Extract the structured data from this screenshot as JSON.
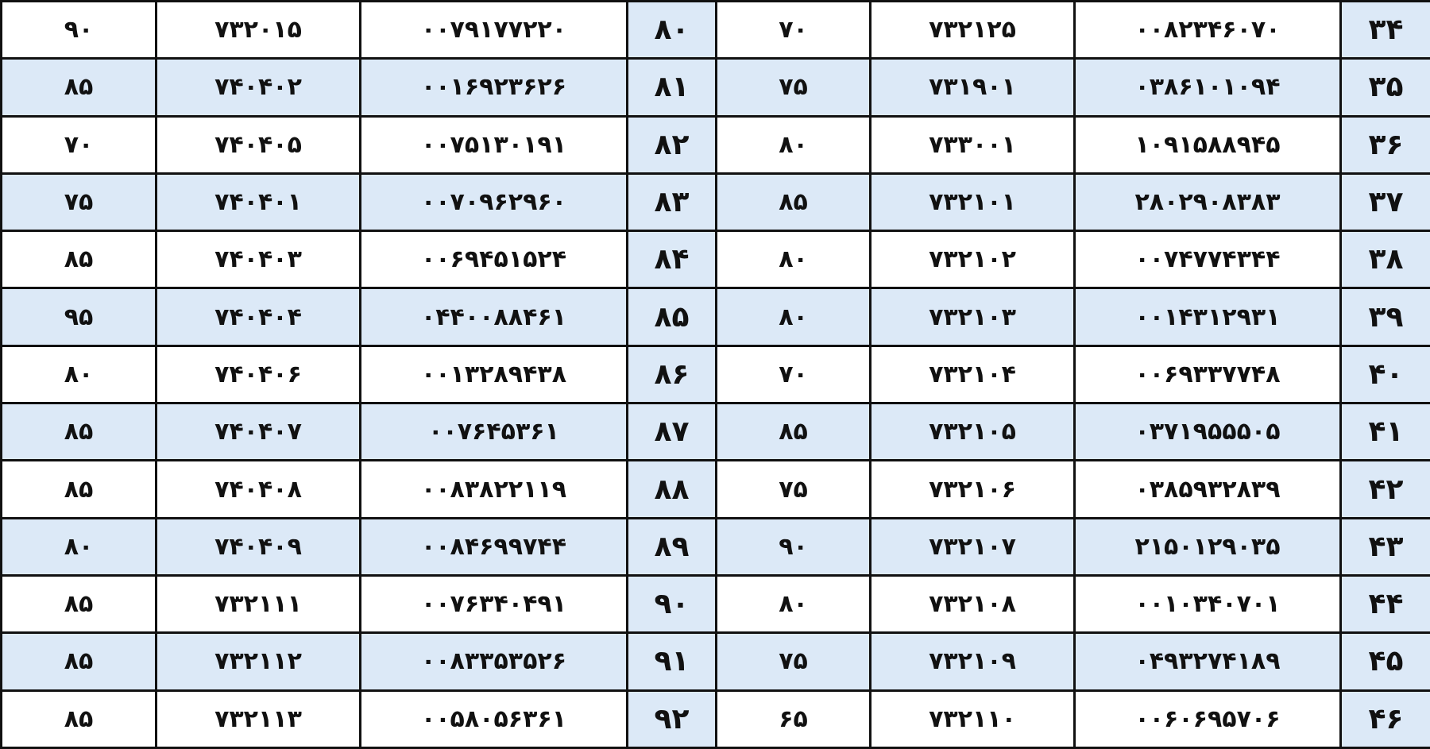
{
  "table": {
    "rows": [
      [
        "۹۰",
        "۷۳۲۰۱۵",
        "۰۰۷۹۱۷۷۲۲۰",
        "۸۰",
        "۷۰",
        "۷۳۲۱۲۵",
        "۰۰۸۲۳۴۶۰۷۰",
        "۳۴"
      ],
      [
        "۸۵",
        "۷۴۰۴۰۲",
        "۰۰۱۶۹۲۳۶۲۶",
        "۸۱",
        "۷۵",
        "۷۳۱۹۰۱",
        "۰۳۸۶۱۰۱۰۹۴",
        "۳۵"
      ],
      [
        "۷۰",
        "۷۴۰۴۰۵",
        "۰۰۷۵۱۳۰۱۹۱",
        "۸۲",
        "۸۰",
        "۷۳۳۰۰۱",
        "۱۰۹۱۵۸۸۹۴۵",
        "۳۶"
      ],
      [
        "۷۵",
        "۷۴۰۴۰۱",
        "۰۰۷۰۹۶۲۹۶۰",
        "۸۳",
        "۸۵",
        "۷۳۲۱۰۱",
        "۲۸۰۲۹۰۸۳۸۳",
        "۳۷"
      ],
      [
        "۸۵",
        "۷۴۰۴۰۳",
        "۰۰۶۹۴۵۱۵۲۴",
        "۸۴",
        "۸۰",
        "۷۳۲۱۰۲",
        "۰۰۷۴۷۷۴۳۴۴",
        "۳۸"
      ],
      [
        "۹۵",
        "۷۴۰۴۰۴",
        "۰۴۴۰۰۸۸۴۶۱",
        "۸۵",
        "۸۰",
        "۷۳۲۱۰۳",
        "۰۰۱۴۳۱۲۹۳۱",
        "۳۹"
      ],
      [
        "۸۰",
        "۷۴۰۴۰۶",
        "۰۰۱۳۲۸۹۴۳۸",
        "۸۶",
        "۷۰",
        "۷۳۲۱۰۴",
        "۰۰۶۹۳۳۷۷۴۸",
        "۴۰"
      ],
      [
        "۸۵",
        "۷۴۰۴۰۷",
        "۰۰۷۶۴۵۳۶۱",
        "۸۷",
        "۸۵",
        "۷۳۲۱۰۵",
        "۰۳۷۱۹۵۵۵۰۵",
        "۴۱"
      ],
      [
        "۸۵",
        "۷۴۰۴۰۸",
        "۰۰۸۳۸۲۲۱۱۹",
        "۸۸",
        "۷۵",
        "۷۳۲۱۰۶",
        "۰۳۸۵۹۳۲۸۳۹",
        "۴۲"
      ],
      [
        "۸۰",
        "۷۴۰۴۰۹",
        "۰۰۸۴۶۹۹۷۴۴",
        "۸۹",
        "۹۰",
        "۷۳۲۱۰۷",
        "۲۱۵۰۱۲۹۰۳۵",
        "۴۳"
      ],
      [
        "۸۵",
        "۷۳۲۱۱۱",
        "۰۰۷۶۳۴۰۴۹۱",
        "۹۰",
        "۸۰",
        "۷۳۲۱۰۸",
        "۰۰۱۰۳۴۰۷۰۱",
        "۴۴"
      ],
      [
        "۸۵",
        "۷۳۲۱۱۲",
        "۰۰۸۳۳۵۳۵۲۶",
        "۹۱",
        "۷۵",
        "۷۳۲۱۰۹",
        "۰۴۹۳۲۷۴۱۸۹",
        "۴۵"
      ],
      [
        "۸۵",
        "۷۳۲۱۱۳",
        "۰۰۵۸۰۵۶۳۶۱",
        "۹۲",
        "۶۵",
        "۷۳۲۱۱۰",
        "۰۰۶۰۶۹۵۷۰۶",
        "۴۶"
      ]
    ]
  }
}
